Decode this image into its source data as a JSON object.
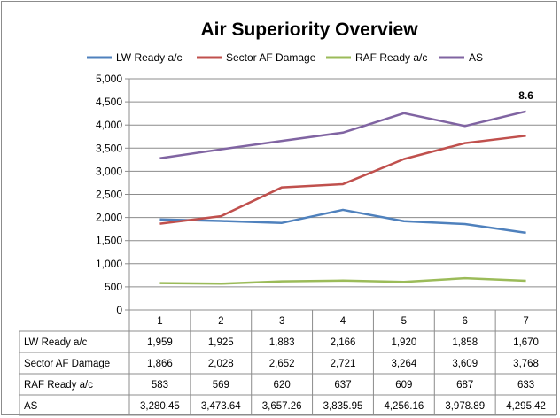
{
  "chart_data": {
    "type": "line",
    "title": "Air Superiority Overview",
    "categories": [
      "1",
      "2",
      "3",
      "4",
      "5",
      "6",
      "7"
    ],
    "ylim": [
      0,
      5000
    ],
    "yticks": [
      "0",
      "500",
      "1,000",
      "1,500",
      "2,000",
      "2,500",
      "3,000",
      "3,500",
      "4,000",
      "4,500",
      "5,000"
    ],
    "grid": true,
    "legend_position": "top",
    "data_table": true,
    "annotation": {
      "text": "8.6",
      "series": "AS",
      "index": 6
    },
    "series": [
      {
        "name": "LW Ready a/c",
        "color": "#4f81bd",
        "values": [
          1959,
          1925,
          1883,
          2166,
          1920,
          1858,
          1670
        ],
        "labels": [
          "1,959",
          "1,925",
          "1,883",
          "2,166",
          "1,920",
          "1,858",
          "1,670"
        ]
      },
      {
        "name": "Sector AF Damage",
        "color": "#c0504d",
        "values": [
          1866,
          2028,
          2652,
          2721,
          3264,
          3609,
          3768
        ],
        "labels": [
          "1,866",
          "2,028",
          "2,652",
          "2,721",
          "3,264",
          "3,609",
          "3,768"
        ]
      },
      {
        "name": "RAF Ready a/c",
        "color": "#9bbb59",
        "values": [
          583,
          569,
          620,
          637,
          609,
          687,
          633
        ],
        "labels": [
          "583",
          "569",
          "620",
          "637",
          "609",
          "687",
          "633"
        ]
      },
      {
        "name": "AS",
        "color": "#8064a2",
        "values": [
          3280.45,
          3473.64,
          3657.26,
          3835.95,
          4256.16,
          3978.89,
          4295.42
        ],
        "labels": [
          "3,280.45",
          "3,473.64",
          "3,657.26",
          "3,835.95",
          "4,256.16",
          "3,978.89",
          "4,295.42"
        ]
      }
    ]
  }
}
